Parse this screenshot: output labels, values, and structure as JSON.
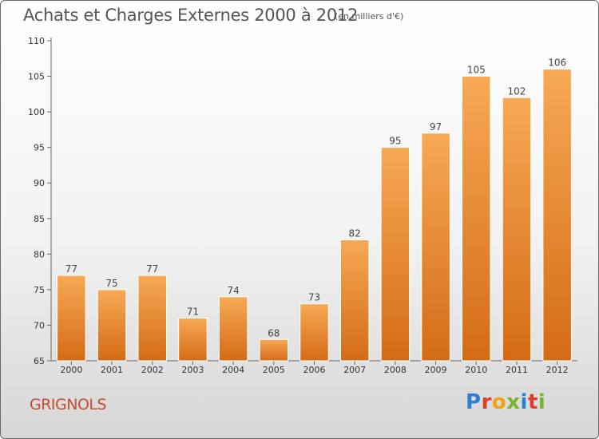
{
  "header": {
    "title": "Achats et Charges Externes 2000 à 2012",
    "unit": "(en milliers d'€)"
  },
  "footer": {
    "commune": "GRIGNOLS",
    "logo_letters": [
      "P",
      "r",
      "o",
      "x",
      "i",
      "t",
      "i"
    ],
    "logo_colors": [
      "#2e7fd1",
      "#e03b2b",
      "#f4a20e",
      "#7ab32e",
      "#2e7fd1",
      "#e03b2b",
      "#7ab32e"
    ]
  },
  "colors": {
    "bar_light": "#f7a955",
    "bar_dark": "#d46b16",
    "title": "#555555",
    "commune": "#c84b2f"
  },
  "chart_data": {
    "type": "bar",
    "categories": [
      "2000",
      "2001",
      "2002",
      "2003",
      "2004",
      "2005",
      "2006",
      "2007",
      "2008",
      "2009",
      "2010",
      "2011",
      "2012"
    ],
    "values": [
      77,
      75,
      77,
      71,
      74,
      68,
      73,
      82,
      95,
      97,
      105,
      102,
      106
    ],
    "ylim": [
      65,
      110
    ],
    "yticks": [
      65,
      70,
      75,
      80,
      85,
      90,
      95,
      100,
      105,
      110
    ],
    "grid": false,
    "legend": "none"
  }
}
